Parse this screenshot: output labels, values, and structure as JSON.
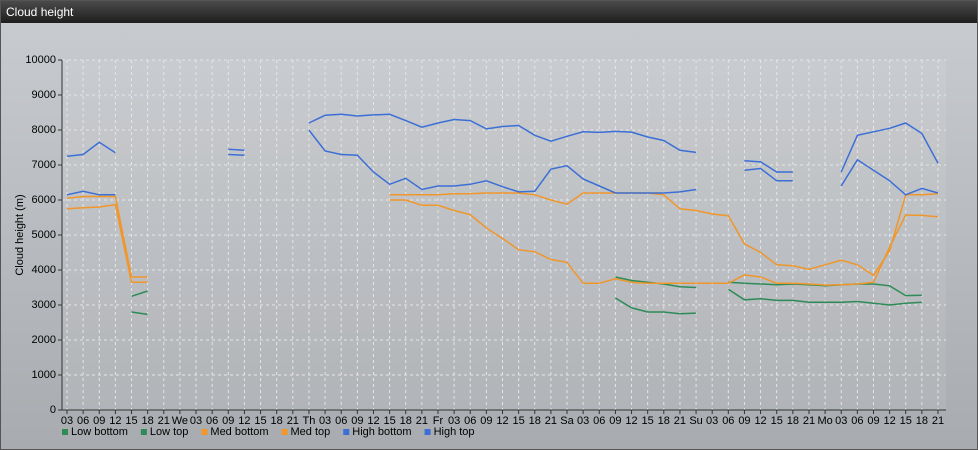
{
  "window_title": "Cloud height",
  "chart_data": {
    "type": "line",
    "y_label": "Cloud height (m)",
    "categories": [
      "03",
      "06",
      "09",
      "12",
      "15",
      "18",
      "21",
      "We",
      "03",
      "06",
      "09",
      "12",
      "15",
      "18",
      "21",
      "Th",
      "03",
      "06",
      "09",
      "12",
      "15",
      "18",
      "21",
      "Fr",
      "03",
      "06",
      "09",
      "12",
      "15",
      "18",
      "21",
      "Sa",
      "03",
      "06",
      "09",
      "12",
      "15",
      "18",
      "21",
      "Su",
      "03",
      "06",
      "09",
      "12",
      "15",
      "18",
      "21",
      "Mo",
      "03",
      "06",
      "09",
      "12",
      "15",
      "18",
      "21"
    ],
    "ylim": [
      0,
      10000
    ],
    "yticks": [
      0,
      1000,
      2000,
      3000,
      4000,
      5000,
      6000,
      7000,
      8000,
      9000,
      10000
    ],
    "grid": true,
    "series": [
      {
        "name": "Low bottom",
        "color": "#2e8b57",
        "values": [
          null,
          null,
          null,
          null,
          2800,
          2730,
          null,
          null,
          null,
          null,
          null,
          null,
          null,
          null,
          null,
          null,
          null,
          null,
          null,
          null,
          null,
          null,
          null,
          null,
          null,
          null,
          null,
          null,
          null,
          null,
          null,
          null,
          null,
          null,
          3200,
          2920,
          2800,
          2800,
          2750,
          2770,
          null,
          3450,
          3150,
          3180,
          3130,
          3130,
          3080,
          3080,
          3080,
          3100,
          3050,
          3000,
          3050,
          3080,
          null
        ]
      },
      {
        "name": "Low top",
        "color": "#2e8b57",
        "values": [
          null,
          null,
          null,
          null,
          3250,
          3400,
          null,
          null,
          null,
          null,
          null,
          null,
          null,
          null,
          null,
          null,
          null,
          null,
          null,
          null,
          null,
          null,
          null,
          null,
          null,
          null,
          null,
          null,
          null,
          null,
          null,
          null,
          null,
          null,
          3800,
          3700,
          3650,
          3600,
          3520,
          3500,
          null,
          3650,
          3620,
          3600,
          3580,
          3600,
          3580,
          3550,
          3580,
          3600,
          3600,
          3550,
          3270,
          3280,
          null
        ]
      },
      {
        "name": "Med bottom",
        "color": "#f0962a",
        "values": [
          5750,
          5780,
          5800,
          5870,
          3650,
          3650,
          null,
          null,
          null,
          null,
          null,
          null,
          null,
          null,
          null,
          null,
          null,
          null,
          null,
          null,
          6000,
          6000,
          5850,
          5850,
          5700,
          5580,
          5200,
          4900,
          4580,
          4520,
          4300,
          4220,
          3620,
          3620,
          3750,
          3650,
          3620,
          3620,
          3620,
          3620,
          3620,
          3620,
          3860,
          3800,
          3620,
          3620,
          3600,
          3570,
          3580,
          3600,
          3650,
          4650,
          5570,
          5560,
          5520
        ]
      },
      {
        "name": "Med top",
        "color": "#f0962a",
        "values": [
          6050,
          6100,
          6100,
          6100,
          3800,
          3800,
          null,
          null,
          null,
          null,
          null,
          null,
          null,
          null,
          null,
          null,
          null,
          null,
          null,
          null,
          6150,
          6150,
          6150,
          6150,
          6180,
          6180,
          6200,
          6200,
          6200,
          6150,
          6000,
          5880,
          6200,
          6200,
          6200,
          6200,
          6200,
          6150,
          5750,
          5700,
          5600,
          5550,
          4750,
          4500,
          4150,
          4120,
          4020,
          4150,
          4280,
          4150,
          3850,
          4550,
          6150,
          6150,
          6180
        ]
      },
      {
        "name": "High bottom",
        "color": "#3c6fd6",
        "values": [
          6150,
          6250,
          6150,
          6150,
          null,
          null,
          null,
          null,
          null,
          null,
          7300,
          7280,
          null,
          null,
          null,
          8000,
          7400,
          7300,
          7280,
          6800,
          6450,
          6620,
          6300,
          6400,
          6400,
          6450,
          6550,
          6380,
          6230,
          6250,
          6880,
          6980,
          6600,
          6400,
          6200,
          6200,
          6200,
          6200,
          6230,
          6300,
          null,
          null,
          6850,
          6900,
          6550,
          6550,
          null,
          null,
          6400,
          7150,
          6850,
          6550,
          6150,
          6330,
          6200
        ]
      },
      {
        "name": "High top",
        "color": "#3c6fd6",
        "values": [
          7250,
          7300,
          7650,
          7350,
          null,
          null,
          null,
          null,
          null,
          null,
          7450,
          7420,
          null,
          null,
          null,
          8200,
          8420,
          8450,
          8400,
          8430,
          8450,
          8270,
          8080,
          8200,
          8300,
          8270,
          8030,
          8100,
          8130,
          7850,
          7680,
          7820,
          7950,
          7930,
          7960,
          7940,
          7800,
          7700,
          7420,
          7360,
          null,
          null,
          7120,
          7090,
          6800,
          6800,
          null,
          null,
          6800,
          7850,
          7950,
          8050,
          8200,
          7900,
          7050
        ]
      }
    ]
  }
}
